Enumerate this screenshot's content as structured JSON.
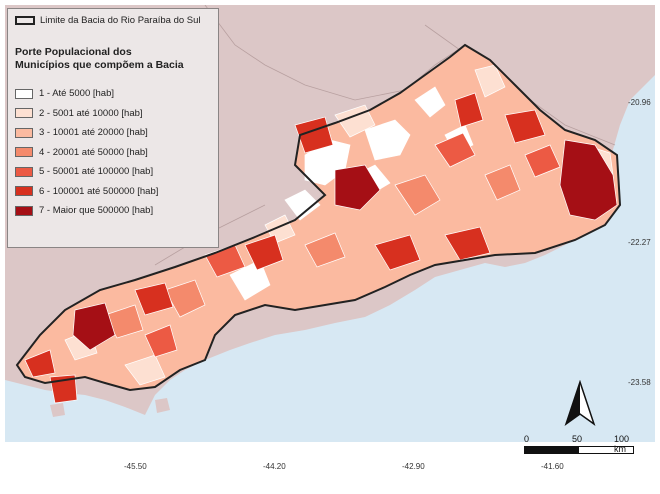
{
  "legend": {
    "boundary_label": "Limite da Bacia do Rio Paraíba do Sul",
    "title_line1": "Porte Populacional dos",
    "title_line2": "Municípios que compõem a Bacia",
    "classes": [
      {
        "label": "1 - Até 5000 [hab]",
        "color": "#ffffff"
      },
      {
        "label": "2 - 5001 até 10000 [hab]",
        "color": "#fde0d2"
      },
      {
        "label": "3 - 10001 até 20000 [hab]",
        "color": "#fbbaa0"
      },
      {
        "label": "4 - 20001 até 50000 [hab]",
        "color": "#f48a6c"
      },
      {
        "label": "5 - 50001 até 100000 [hab]",
        "color": "#ec5a44"
      },
      {
        "label": "6 - 100001 até 500000 [hab]",
        "color": "#d7301f"
      },
      {
        "label": "7 - Maior que 500000 [hab]",
        "color": "#a50f15"
      }
    ]
  },
  "colors": {
    "ocean": "#d7e8f3",
    "land": "#dcc7c7",
    "frame_bg": "#ffffff"
  },
  "latitude_labels": [
    "-20.96",
    "-22.27",
    "-23.58"
  ],
  "longitude_labels": [
    "-45.50",
    "-44.20",
    "-42.90",
    "-41.60"
  ],
  "scale_bar": {
    "zero": "0",
    "mid": "50",
    "end": "100 km"
  },
  "north_arrow": "north-arrow-icon"
}
